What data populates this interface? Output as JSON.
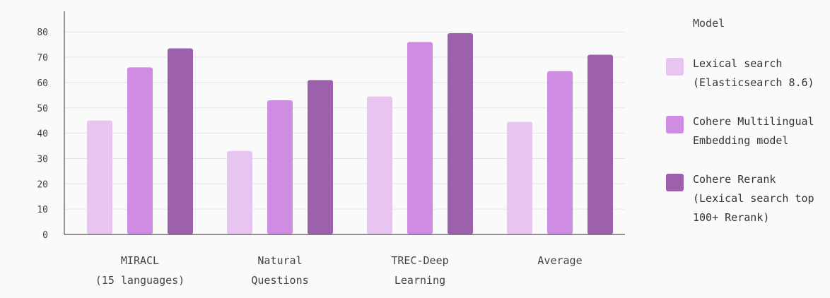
{
  "chart_data": {
    "type": "bar",
    "title": "",
    "xlabel": "",
    "ylabel": "",
    "ylim": [
      0,
      85
    ],
    "yticks": [
      0,
      10,
      20,
      30,
      40,
      50,
      60,
      70,
      80
    ],
    "grid": true,
    "categories": [
      [
        "MIRACL",
        "(15 languages)"
      ],
      [
        "Natural",
        "Questions"
      ],
      [
        "TREC-Deep",
        "Learning"
      ],
      [
        "Average"
      ]
    ],
    "series": [
      {
        "name": [
          "Lexical search",
          "(Elasticsearch 8.6)"
        ],
        "color": "#e8c5f0",
        "values": [
          45,
          33,
          54.5,
          44.5
        ]
      },
      {
        "name": [
          "Cohere Multilingual",
          "Embedding model"
        ],
        "color": "#cf8ce3",
        "values": [
          66,
          53,
          76,
          64.5
        ]
      },
      {
        "name": [
          "Cohere Rerank",
          "(Lexical search top",
          "100+ Rerank)"
        ],
        "color": "#9c60ad",
        "values": [
          73.5,
          61,
          79.5,
          71
        ]
      }
    ],
    "legend": {
      "title": "Model",
      "position": "right"
    }
  }
}
